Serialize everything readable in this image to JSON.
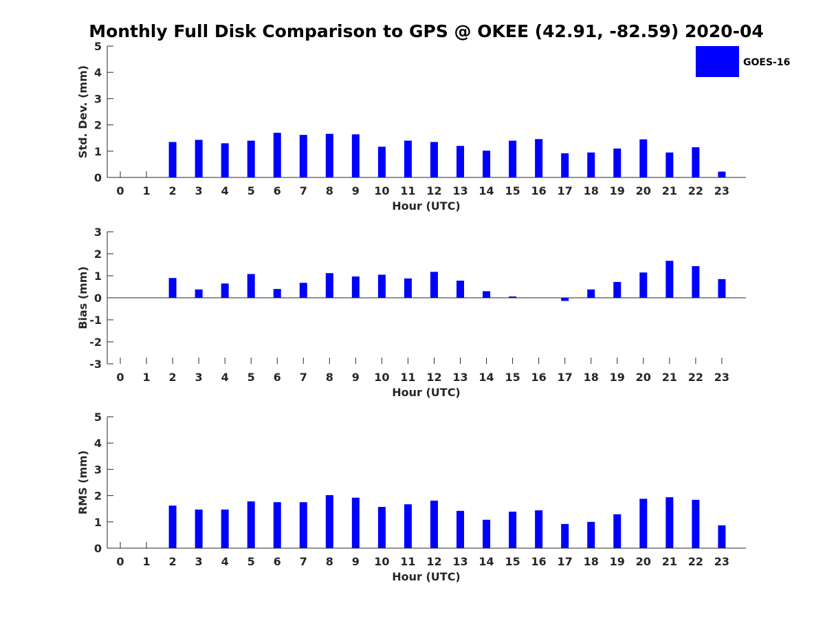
{
  "figure": {
    "title": "Monthly Full Disk Comparison to GPS @ OKEE (42.91, -82.59) 2020-04",
    "legend": {
      "label": "GOES-16",
      "placement": "top-right"
    },
    "bar_color": "#0000ff"
  },
  "chart_data": [
    {
      "type": "bar",
      "xlabel": "Hour (UTC)",
      "ylabel": "Std. Dev. (mm)",
      "ylim": [
        0,
        5
      ],
      "yticks": [
        0,
        1,
        2,
        3,
        4,
        5
      ],
      "categories": [
        "0",
        "1",
        "2",
        "3",
        "4",
        "5",
        "6",
        "7",
        "8",
        "9",
        "10",
        "11",
        "12",
        "13",
        "14",
        "15",
        "16",
        "17",
        "18",
        "19",
        "20",
        "21",
        "22",
        "23"
      ],
      "series": [
        {
          "name": "GOES-16",
          "values": [
            null,
            null,
            1.35,
            1.43,
            1.3,
            1.4,
            1.7,
            1.62,
            1.66,
            1.64,
            1.17,
            1.4,
            1.35,
            1.2,
            1.02,
            1.4,
            1.46,
            0.92,
            0.95,
            1.1,
            1.45,
            0.95,
            1.15,
            0.22
          ]
        }
      ]
    },
    {
      "type": "bar",
      "xlabel": "Hour (UTC)",
      "ylabel": "Bias (mm)",
      "ylim": [
        -3,
        3
      ],
      "yticks": [
        -3,
        -2,
        -1,
        0,
        1,
        2,
        3
      ],
      "categories": [
        "0",
        "1",
        "2",
        "3",
        "4",
        "5",
        "6",
        "7",
        "8",
        "9",
        "10",
        "11",
        "12",
        "13",
        "14",
        "15",
        "16",
        "17",
        "18",
        "19",
        "20",
        "21",
        "22",
        "23"
      ],
      "series": [
        {
          "name": "GOES-16",
          "values": [
            null,
            null,
            0.9,
            0.38,
            0.65,
            1.08,
            0.4,
            0.68,
            1.12,
            0.97,
            1.05,
            0.88,
            1.18,
            0.78,
            0.3,
            0.06,
            0.0,
            -0.14,
            0.38,
            0.72,
            1.15,
            1.68,
            1.44,
            0.85
          ]
        }
      ]
    },
    {
      "type": "bar",
      "xlabel": "Hour (UTC)",
      "ylabel": "RMS (mm)",
      "ylim": [
        0,
        5
      ],
      "yticks": [
        0,
        1,
        2,
        3,
        4,
        5
      ],
      "categories": [
        "0",
        "1",
        "2",
        "3",
        "4",
        "5",
        "6",
        "7",
        "8",
        "9",
        "10",
        "11",
        "12",
        "13",
        "14",
        "15",
        "16",
        "17",
        "18",
        "19",
        "20",
        "21",
        "22",
        "23"
      ],
      "series": [
        {
          "name": "GOES-16",
          "values": [
            null,
            null,
            1.62,
            1.47,
            1.47,
            1.78,
            1.75,
            1.75,
            2.02,
            1.92,
            1.57,
            1.67,
            1.81,
            1.42,
            1.08,
            1.39,
            1.44,
            0.92,
            1.0,
            1.29,
            1.88,
            1.94,
            1.84,
            0.87
          ]
        }
      ]
    }
  ]
}
